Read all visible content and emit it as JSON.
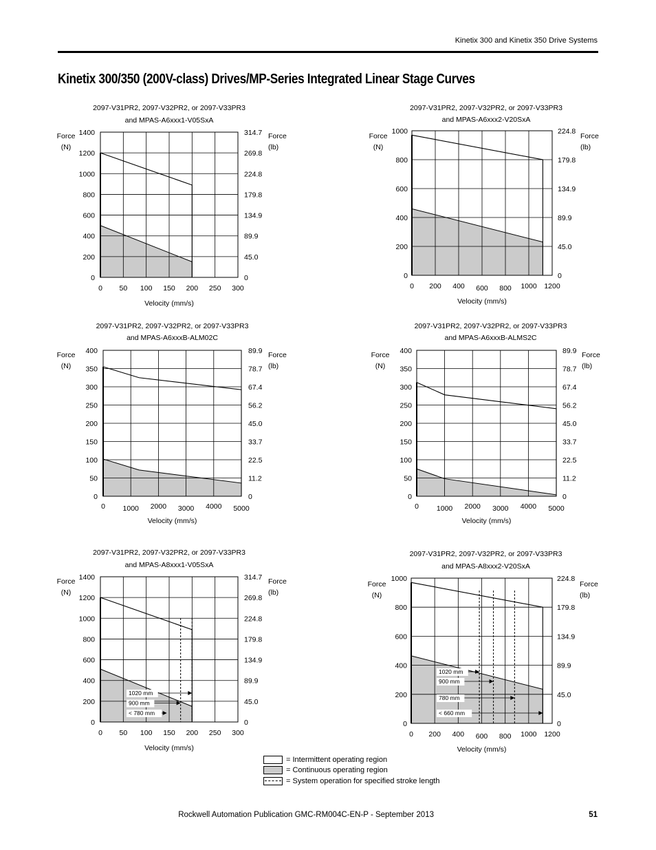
{
  "header": {
    "section": "Kinetix 300 and Kinetix 350 Drive Systems"
  },
  "page_title": "Kinetix 300/350 (200V-class) Drives/MP-Series Integrated Linear Stage Curves",
  "chart_data": [
    {
      "type": "area",
      "title_line1": "2097-V31PR2, 2097-V32PR2, or 2097-V33PR3",
      "title_line2": "and MPAS-A6xxx1-V05SxA",
      "xlabel": "Velocity (mm/s)",
      "ylabel_left": [
        "Force",
        "(N)"
      ],
      "ylabel_right": [
        "Force",
        "(lb)"
      ],
      "xlim": [
        0,
        300
      ],
      "ylim": [
        0,
        1400
      ],
      "x_ticks": [
        "0",
        "50",
        "100",
        "150",
        "200",
        "250",
        "300"
      ],
      "y_ticks_left": [
        "0",
        "200",
        "400",
        "600",
        "800",
        "1000",
        "1200",
        "1400"
      ],
      "y_ticks_right": [
        "0",
        "45.0",
        "89.9",
        "134.9",
        "179.8",
        "224.8",
        "269.8",
        "314.7"
      ],
      "intermittent": {
        "x": [
          0,
          200
        ],
        "y": [
          1200,
          890
        ]
      },
      "continuous": {
        "x": [
          0,
          200
        ],
        "y": [
          500,
          150
        ]
      },
      "stroke_limits": []
    },
    {
      "type": "area",
      "title_line1": "2097-V31PR2, 2097-V32PR2, or 2097-V33PR3",
      "title_line2": "and MPAS-A6xxx2-V20SxA",
      "xlabel": "Velocity (mm/s)",
      "ylabel_left": [
        "Force",
        "(N)"
      ],
      "ylabel_right": [
        "Force",
        "(lb)"
      ],
      "xlim": [
        0,
        1200
      ],
      "ylim": [
        0,
        1000
      ],
      "x_ticks": [
        "0",
        "200",
        "400",
        "600",
        "800",
        "1000",
        "1200"
      ],
      "y_ticks_left": [
        "0",
        "200",
        "400",
        "600",
        "800",
        "1000"
      ],
      "y_ticks_right": [
        "0",
        "45.0",
        "89.9",
        "134.9",
        "179.8",
        "224.8"
      ],
      "intermittent": {
        "x": [
          0,
          1120
        ],
        "y": [
          970,
          800
        ]
      },
      "continuous": {
        "x": [
          0,
          1120
        ],
        "y": [
          460,
          230
        ]
      },
      "stroke_limits": []
    },
    {
      "type": "area",
      "title_line1": "2097-V31PR2, 2097-V32PR2, or 2097-V33PR3",
      "title_line2": "and MPAS-A6xxxB-ALM02C",
      "xlabel": "Velocity (mm/s)",
      "ylabel_left": [
        "Force",
        "(N)"
      ],
      "ylabel_right": [
        "Force",
        "(lb)"
      ],
      "xlim": [
        0,
        5000
      ],
      "ylim": [
        0,
        400
      ],
      "x_ticks": [
        "0",
        "1000",
        "2000",
        "3000",
        "4000",
        "5000"
      ],
      "y_ticks_left": [
        "0",
        "50",
        "100",
        "150",
        "200",
        "250",
        "300",
        "350",
        "400"
      ],
      "y_ticks_right": [
        "0",
        "11.2",
        "22.5",
        "33.7",
        "45.0",
        "56.2",
        "67.4",
        "78.7",
        "89.9"
      ],
      "intermittent": {
        "x": [
          0,
          1300,
          5000
        ],
        "y": [
          355,
          325,
          292
        ]
      },
      "continuous": {
        "x": [
          0,
          1300,
          5000
        ],
        "y": [
          102,
          72,
          36
        ]
      },
      "stroke_limits": []
    },
    {
      "type": "area",
      "title_line1": "2097-V31PR2, 2097-V32PR2, or 2097-V33PR3",
      "title_line2": "and MPAS-A6xxxB-ALMS2C",
      "xlabel": "Velocity (mm/s)",
      "ylabel_left": [
        "Force",
        "(N)"
      ],
      "ylabel_right": [
        "Force",
        "(lb)"
      ],
      "xlim": [
        0,
        5000
      ],
      "ylim": [
        0,
        400
      ],
      "x_ticks": [
        "0",
        "1000",
        "2000",
        "3000",
        "4000",
        "5000"
      ],
      "y_ticks_left": [
        "0",
        "50",
        "100",
        "150",
        "200",
        "250",
        "300",
        "350",
        "400"
      ],
      "y_ticks_right": [
        "0",
        "11.2",
        "22.5",
        "33.7",
        "45.0",
        "56.2",
        "67.4",
        "78.7",
        "89.9"
      ],
      "intermittent": {
        "x": [
          0,
          1000,
          5000
        ],
        "y": [
          312,
          278,
          240
        ]
      },
      "continuous": {
        "x": [
          0,
          1000,
          5000
        ],
        "y": [
          75,
          48,
          4
        ]
      },
      "stroke_limits": []
    },
    {
      "type": "area",
      "title_line1": "2097-V31PR2, 2097-V32PR2, or 2097-V33PR3",
      "title_line2": "and MPAS-A8xxx1-V05SxA",
      "xlabel": "Velocity (mm/s)",
      "ylabel_left": [
        "Force",
        "(N)"
      ],
      "ylabel_right": [
        "Force",
        "(lb)"
      ],
      "xlim": [
        0,
        300
      ],
      "ylim": [
        0,
        1400
      ],
      "x_ticks": [
        "0",
        "50",
        "100",
        "150",
        "200",
        "250",
        "300"
      ],
      "y_ticks_left": [
        "0",
        "200",
        "400",
        "600",
        "800",
        "1000",
        "1200",
        "1400"
      ],
      "y_ticks_right": [
        "0",
        "45.0",
        "89.9",
        "134.9",
        "179.8",
        "224.8",
        "269.8",
        "314.7"
      ],
      "intermittent": {
        "x": [
          0,
          200
        ],
        "y": [
          1200,
          890
        ]
      },
      "continuous": {
        "x": [
          0,
          200
        ],
        "y": [
          510,
          150
        ]
      },
      "stroke_limits": [
        {
          "label": "1020 mm",
          "velocity": 200
        },
        {
          "label": "900 mm",
          "velocity": 175
        },
        {
          "label": "< 780 mm",
          "velocity": 145
        }
      ]
    },
    {
      "type": "area",
      "title_line1": "2097-V31PR2, 2097-V32PR2, or 2097-V33PR3",
      "title_line2": "and MPAS-A8xxx2-V20SxA",
      "xlabel": "Velocity (mm/s)",
      "ylabel_left": [
        "Force",
        "(N)"
      ],
      "ylabel_right": [
        "Force",
        "(lb)"
      ],
      "xlim": [
        0,
        1200
      ],
      "ylim": [
        0,
        1000
      ],
      "x_ticks": [
        "0",
        "200",
        "400",
        "600",
        "800",
        "1000",
        "1200"
      ],
      "y_ticks_left": [
        "0",
        "200",
        "400",
        "600",
        "800",
        "1000"
      ],
      "y_ticks_right": [
        "0",
        "45.0",
        "89.9",
        "134.9",
        "179.8",
        "224.8"
      ],
      "intermittent": {
        "x": [
          0,
          1120
        ],
        "y": [
          970,
          800
        ]
      },
      "continuous": {
        "x": [
          0,
          1120
        ],
        "y": [
          465,
          235
        ]
      },
      "stroke_limits": [
        {
          "label": "1020 mm",
          "velocity": 580
        },
        {
          "label": "900 mm",
          "velocity": 700
        },
        {
          "label": "780 mm",
          "velocity": 880
        },
        {
          "label": "< 660 mm",
          "velocity": 1120
        }
      ]
    }
  ],
  "legend": {
    "items": [
      "= Intermittent operating region",
      "= Continuous operating region",
      "= System operation for specified stroke length"
    ]
  },
  "footer": {
    "publication": "Rockwell Automation Publication GMC-RM004C-EN-P - September 2013",
    "page_number": "51"
  }
}
